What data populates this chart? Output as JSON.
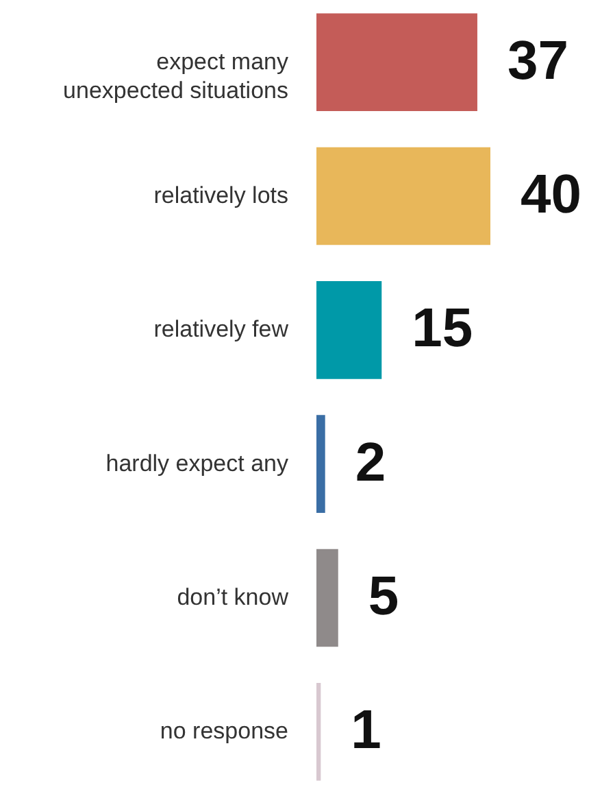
{
  "chart_data": {
    "type": "bar",
    "orientation": "horizontal",
    "categories": [
      "expect many\nunexpected situations",
      "relatively lots",
      "relatively few",
      "hardly expect any",
      "don’t know",
      "no response"
    ],
    "values": [
      37,
      40,
      15,
      2,
      5,
      1
    ],
    "colors": [
      "#c45c58",
      "#e8b75a",
      "#0099a8",
      "#3a6ea5",
      "#8f8a8a",
      "#d8c8d0"
    ],
    "data_labels": true,
    "grid": false,
    "legend": false
  }
}
